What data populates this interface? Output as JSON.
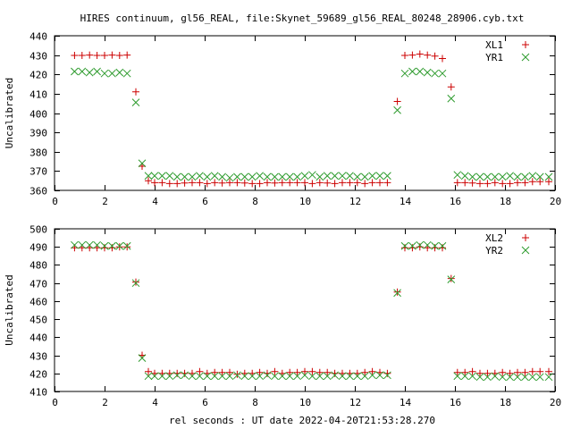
{
  "title": "HIRES continuum, gl56_REAL, file:Skynet_59689_gl56_REAL_80248_28906.cyb.txt",
  "xlabel": "rel seconds : UT date 2022-04-20T21:53:28.270",
  "colors": {
    "series1": "#cc0000",
    "series2": "#2e9b2e",
    "axes": "#000000"
  },
  "chart_data": [
    {
      "type": "scatter",
      "ylabel": "Uncalibrated",
      "xlim": [
        0,
        20
      ],
      "ylim": [
        360,
        440
      ],
      "xticks": [
        0,
        2,
        4,
        6,
        8,
        10,
        12,
        14,
        16,
        18,
        20
      ],
      "yticks": [
        360,
        370,
        380,
        390,
        400,
        410,
        420,
        430,
        440
      ],
      "legend_position": "top-right",
      "series": [
        {
          "name": "XL1",
          "marker": "plus",
          "x": [
            0.8,
            1.1,
            1.4,
            1.7,
            2.0,
            2.3,
            2.6,
            2.9,
            3.25,
            3.5,
            3.75,
            4.0,
            4.3,
            4.6,
            4.9,
            5.2,
            5.5,
            5.8,
            6.1,
            6.4,
            6.7,
            7.0,
            7.3,
            7.6,
            7.9,
            8.2,
            8.5,
            8.8,
            9.1,
            9.4,
            9.7,
            10.0,
            10.3,
            10.6,
            10.9,
            11.2,
            11.5,
            11.8,
            12.1,
            12.4,
            12.7,
            13.0,
            13.3,
            13.7,
            14.0,
            14.3,
            14.6,
            14.9,
            15.2,
            15.5,
            15.85,
            16.1,
            16.4,
            16.7,
            17.0,
            17.3,
            17.6,
            17.9,
            18.2,
            18.5,
            18.8,
            19.1,
            19.4,
            19.75
          ],
          "y": [
            429.8,
            429.8,
            430.0,
            429.8,
            429.8,
            430.0,
            429.8,
            430.0,
            411.0,
            372.5,
            365.0,
            364.0,
            364.0,
            363.5,
            363.5,
            363.8,
            364.0,
            364.0,
            363.5,
            364.0,
            363.8,
            364.0,
            364.0,
            363.8,
            363.5,
            363.5,
            364.0,
            363.8,
            364.0,
            364.0,
            364.0,
            364.0,
            363.5,
            364.0,
            363.8,
            363.5,
            364.0,
            364.0,
            364.0,
            363.5,
            364.0,
            364.0,
            364.0,
            406.0,
            429.8,
            430.0,
            430.5,
            430.0,
            429.5,
            428.2,
            413.5,
            364.0,
            364.0,
            363.8,
            363.5,
            363.5,
            364.0,
            363.5,
            363.5,
            364.0,
            364.0,
            364.5,
            364.5,
            364.5
          ]
        },
        {
          "name": "YR1",
          "marker": "cross",
          "x": [
            0.8,
            1.1,
            1.4,
            1.7,
            2.0,
            2.3,
            2.6,
            2.9,
            3.25,
            3.5,
            3.75,
            4.0,
            4.3,
            4.6,
            4.9,
            5.2,
            5.5,
            5.8,
            6.1,
            6.4,
            6.7,
            7.0,
            7.3,
            7.6,
            7.9,
            8.2,
            8.5,
            8.8,
            9.1,
            9.4,
            9.7,
            10.0,
            10.3,
            10.6,
            10.9,
            11.2,
            11.5,
            11.8,
            12.1,
            12.4,
            12.7,
            13.0,
            13.3,
            13.7,
            14.0,
            14.3,
            14.6,
            14.9,
            15.2,
            15.5,
            15.85,
            16.1,
            16.4,
            16.7,
            17.0,
            17.3,
            17.6,
            17.9,
            18.2,
            18.5,
            18.8,
            19.1,
            19.4,
            19.75
          ],
          "y": [
            421.5,
            421.5,
            421.0,
            421.5,
            420.5,
            420.5,
            421.0,
            420.5,
            405.5,
            374.0,
            367.5,
            367.5,
            367.5,
            367.5,
            367.0,
            367.0,
            367.0,
            367.5,
            367.0,
            367.5,
            367.0,
            366.5,
            367.0,
            367.0,
            367.0,
            367.5,
            367.0,
            367.0,
            367.0,
            367.0,
            367.0,
            367.5,
            368.0,
            367.0,
            367.5,
            367.5,
            367.5,
            367.5,
            367.0,
            367.0,
            367.5,
            367.5,
            367.5,
            401.5,
            420.5,
            421.5,
            421.5,
            421.0,
            420.5,
            420.5,
            407.5,
            368.0,
            367.5,
            367.0,
            367.0,
            367.0,
            367.0,
            367.0,
            367.5,
            367.0,
            367.0,
            367.5,
            367.0,
            367.0
          ]
        }
      ]
    },
    {
      "type": "scatter",
      "ylabel": "Uncalibrated",
      "xlim": [
        0,
        20
      ],
      "ylim": [
        410,
        500
      ],
      "xticks": [
        0,
        2,
        4,
        6,
        8,
        10,
        12,
        14,
        16,
        18,
        20
      ],
      "yticks": [
        410,
        420,
        430,
        440,
        450,
        460,
        470,
        480,
        490,
        500
      ],
      "legend_position": "top-right",
      "series": [
        {
          "name": "XL2",
          "marker": "plus",
          "x": [
            0.8,
            1.1,
            1.4,
            1.7,
            2.0,
            2.3,
            2.6,
            2.9,
            3.25,
            3.5,
            3.75,
            4.0,
            4.3,
            4.6,
            4.9,
            5.2,
            5.5,
            5.8,
            6.1,
            6.4,
            6.7,
            7.0,
            7.3,
            7.6,
            7.9,
            8.2,
            8.5,
            8.8,
            9.1,
            9.4,
            9.7,
            10.0,
            10.3,
            10.6,
            10.9,
            11.2,
            11.5,
            11.8,
            12.1,
            12.4,
            12.7,
            13.0,
            13.3,
            13.7,
            14.0,
            14.3,
            14.6,
            14.9,
            15.2,
            15.5,
            15.85,
            16.1,
            16.4,
            16.7,
            17.0,
            17.3,
            17.6,
            17.9,
            18.2,
            18.5,
            18.8,
            19.1,
            19.4,
            19.75
          ],
          "y": [
            489.5,
            489.5,
            489.5,
            489.5,
            489.5,
            489.5,
            490.0,
            490.0,
            470.5,
            430.0,
            421.0,
            420.0,
            420.0,
            420.0,
            420.0,
            420.0,
            420.0,
            421.0,
            420.0,
            420.5,
            420.5,
            420.5,
            419.5,
            420.0,
            420.0,
            420.5,
            420.0,
            421.0,
            420.0,
            420.5,
            420.5,
            421.0,
            421.0,
            420.5,
            420.5,
            420.0,
            420.0,
            420.0,
            420.0,
            420.5,
            421.0,
            420.5,
            420.0,
            465.0,
            489.5,
            489.5,
            490.0,
            489.5,
            489.5,
            489.5,
            472.5,
            420.5,
            420.5,
            421.0,
            420.0,
            420.0,
            420.0,
            420.5,
            420.0,
            420.5,
            420.5,
            421.0,
            421.0,
            421.0
          ]
        },
        {
          "name": "YR2",
          "marker": "cross",
          "x": [
            0.8,
            1.1,
            1.4,
            1.7,
            2.0,
            2.3,
            2.6,
            2.9,
            3.25,
            3.5,
            3.75,
            4.0,
            4.3,
            4.6,
            4.9,
            5.2,
            5.5,
            5.8,
            6.1,
            6.4,
            6.7,
            7.0,
            7.3,
            7.6,
            7.9,
            8.2,
            8.5,
            8.8,
            9.1,
            9.4,
            9.7,
            10.0,
            10.3,
            10.6,
            10.9,
            11.2,
            11.5,
            11.8,
            12.1,
            12.4,
            12.7,
            13.0,
            13.3,
            13.7,
            14.0,
            14.3,
            14.6,
            14.9,
            15.2,
            15.5,
            15.85,
            16.1,
            16.4,
            16.7,
            17.0,
            17.3,
            17.6,
            17.9,
            18.2,
            18.5,
            18.8,
            19.1,
            19.4,
            19.75
          ],
          "y": [
            491.0,
            491.0,
            491.0,
            491.0,
            490.5,
            490.5,
            490.5,
            490.5,
            470.0,
            428.5,
            418.5,
            418.5,
            418.5,
            418.5,
            419.0,
            419.0,
            418.5,
            418.5,
            418.5,
            418.5,
            418.5,
            418.5,
            419.0,
            418.5,
            418.5,
            418.5,
            419.0,
            418.5,
            418.5,
            418.5,
            418.5,
            419.0,
            418.5,
            418.5,
            418.5,
            419.0,
            418.5,
            418.5,
            418.5,
            418.5,
            419.0,
            419.0,
            419.0,
            464.5,
            490.5,
            490.5,
            491.0,
            491.0,
            490.5,
            490.5,
            472.0,
            418.5,
            418.5,
            418.5,
            418.0,
            418.0,
            418.5,
            418.0,
            418.0,
            418.0,
            418.0,
            418.0,
            418.0,
            418.0
          ]
        }
      ]
    }
  ]
}
